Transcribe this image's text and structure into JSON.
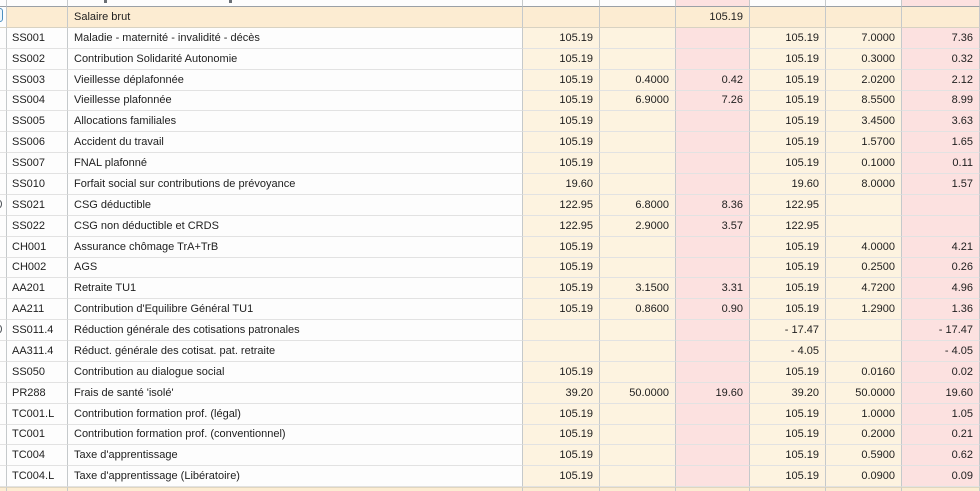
{
  "app": {
    "description_title": "Payroll contributions grid",
    "colors": {
      "highlight_row_bg": "#fcecd2",
      "numeric_col_bg": "#fdf3e0",
      "amount_col_bg": "#fce1e0",
      "plain_cell_bg": "#fdfdfd",
      "grid_vline": "#c5c9cb",
      "grid_hline": "#e2e2e2",
      "focus_chip_border": "#4d90c0"
    }
  },
  "table": {
    "columns": [
      {
        "key": "gutter",
        "label": ""
      },
      {
        "key": "code",
        "label": ""
      },
      {
        "key": "label",
        "label": ""
      },
      {
        "key": "b1",
        "label": ""
      },
      {
        "key": "r1",
        "label": ""
      },
      {
        "key": "a1",
        "label": ""
      },
      {
        "key": "b2",
        "label": ""
      },
      {
        "key": "r2",
        "label": ""
      },
      {
        "key": "a2",
        "label": ""
      }
    ],
    "rows": [
      {
        "code": "",
        "label": "Salaire brut",
        "b1": "",
        "r1": "",
        "a1": "105.19",
        "b2": "",
        "r2": "",
        "a2": "",
        "highlight": true,
        "focus_chip": true,
        "gutter_mark": false
      },
      {
        "code": "SS001",
        "label": "Maladie - maternité - invalidité - décès",
        "b1": "105.19",
        "r1": "",
        "a1": "",
        "b2": "105.19",
        "r2": "7.0000",
        "a2": "7.36",
        "highlight": false,
        "focus_chip": false,
        "gutter_mark": false
      },
      {
        "code": "SS002",
        "label": "Contribution Solidarité Autonomie",
        "b1": "105.19",
        "r1": "",
        "a1": "",
        "b2": "105.19",
        "r2": "0.3000",
        "a2": "0.32",
        "highlight": false,
        "focus_chip": false,
        "gutter_mark": false
      },
      {
        "code": "SS003",
        "label": "Vieillesse déplafonnée",
        "b1": "105.19",
        "r1": "0.4000",
        "a1": "0.42",
        "b2": "105.19",
        "r2": "2.0200",
        "a2": "2.12",
        "highlight": false,
        "focus_chip": false,
        "gutter_mark": false
      },
      {
        "code": "SS004",
        "label": "Vieillesse plafonnée",
        "b1": "105.19",
        "r1": "6.9000",
        "a1": "7.26",
        "b2": "105.19",
        "r2": "8.5500",
        "a2": "8.99",
        "highlight": false,
        "focus_chip": false,
        "gutter_mark": false
      },
      {
        "code": "SS005",
        "label": "Allocations familiales",
        "b1": "105.19",
        "r1": "",
        "a1": "",
        "b2": "105.19",
        "r2": "3.4500",
        "a2": "3.63",
        "highlight": false,
        "focus_chip": false,
        "gutter_mark": false
      },
      {
        "code": "SS006",
        "label": "Accident du travail",
        "b1": "105.19",
        "r1": "",
        "a1": "",
        "b2": "105.19",
        "r2": "1.5700",
        "a2": "1.65",
        "highlight": false,
        "focus_chip": false,
        "gutter_mark": false
      },
      {
        "code": "SS007",
        "label": "FNAL plafonné",
        "b1": "105.19",
        "r1": "",
        "a1": "",
        "b2": "105.19",
        "r2": "0.1000",
        "a2": "0.11",
        "highlight": false,
        "focus_chip": false,
        "gutter_mark": false
      },
      {
        "code": "SS010",
        "label": "Forfait social sur contributions de prévoyance",
        "b1": "19.60",
        "r1": "",
        "a1": "",
        "b2": "19.60",
        "r2": "8.0000",
        "a2": "1.57",
        "highlight": false,
        "focus_chip": false,
        "gutter_mark": false
      },
      {
        "code": "SS021",
        "label": "CSG déductible",
        "b1": "122.95",
        "r1": "6.8000",
        "a1": "8.36",
        "b2": "122.95",
        "r2": "",
        "a2": "",
        "highlight": false,
        "focus_chip": false,
        "gutter_mark": true
      },
      {
        "code": "SS022",
        "label": "CSG non déductible et CRDS",
        "b1": "122.95",
        "r1": "2.9000",
        "a1": "3.57",
        "b2": "122.95",
        "r2": "",
        "a2": "",
        "highlight": false,
        "focus_chip": false,
        "gutter_mark": false
      },
      {
        "code": "CH001",
        "label": "Assurance chômage TrA+TrB",
        "b1": "105.19",
        "r1": "",
        "a1": "",
        "b2": "105.19",
        "r2": "4.0000",
        "a2": "4.21",
        "highlight": false,
        "focus_chip": false,
        "gutter_mark": false
      },
      {
        "code": "CH002",
        "label": "AGS",
        "b1": "105.19",
        "r1": "",
        "a1": "",
        "b2": "105.19",
        "r2": "0.2500",
        "a2": "0.26",
        "highlight": false,
        "focus_chip": false,
        "gutter_mark": false
      },
      {
        "code": "AA201",
        "label": "Retraite TU1",
        "b1": "105.19",
        "r1": "3.1500",
        "a1": "3.31",
        "b2": "105.19",
        "r2": "4.7200",
        "a2": "4.96",
        "highlight": false,
        "focus_chip": false,
        "gutter_mark": false
      },
      {
        "code": "AA211",
        "label": "Contribution d'Equilibre Général TU1",
        "b1": "105.19",
        "r1": "0.8600",
        "a1": "0.90",
        "b2": "105.19",
        "r2": "1.2900",
        "a2": "1.36",
        "highlight": false,
        "focus_chip": false,
        "gutter_mark": false
      },
      {
        "code": "SS011.4",
        "label": "Réduction générale des cotisations patronales",
        "b1": "",
        "r1": "",
        "a1": "",
        "b2": "- 17.47",
        "r2": "",
        "a2": "- 17.47",
        "highlight": false,
        "focus_chip": false,
        "gutter_mark": true
      },
      {
        "code": "AA311.4",
        "label": "Réduct. générale des cotisat. pat. retraite",
        "b1": "",
        "r1": "",
        "a1": "",
        "b2": "- 4.05",
        "r2": "",
        "a2": "- 4.05",
        "highlight": false,
        "focus_chip": false,
        "gutter_mark": false
      },
      {
        "code": "SS050",
        "label": "Contribution au dialogue social",
        "b1": "105.19",
        "r1": "",
        "a1": "",
        "b2": "105.19",
        "r2": "0.0160",
        "a2": "0.02",
        "highlight": false,
        "focus_chip": false,
        "gutter_mark": false
      },
      {
        "code": "PR288",
        "label": "Frais de santé 'isolé'",
        "b1": "39.20",
        "r1": "50.0000",
        "a1": "19.60",
        "b2": "39.20",
        "r2": "50.0000",
        "a2": "19.60",
        "highlight": false,
        "focus_chip": false,
        "gutter_mark": false
      },
      {
        "code": "TC001.L",
        "label": "Contribution formation prof. (légal)",
        "b1": "105.19",
        "r1": "",
        "a1": "",
        "b2": "105.19",
        "r2": "1.0000",
        "a2": "1.05",
        "highlight": false,
        "focus_chip": false,
        "gutter_mark": false
      },
      {
        "code": "TC001",
        "label": "Contribution formation prof. (conventionnel)",
        "b1": "105.19",
        "r1": "",
        "a1": "",
        "b2": "105.19",
        "r2": "0.2000",
        "a2": "0.21",
        "highlight": false,
        "focus_chip": false,
        "gutter_mark": false
      },
      {
        "code": "TC004",
        "label": "Taxe d'apprentissage",
        "b1": "105.19",
        "r1": "",
        "a1": "",
        "b2": "105.19",
        "r2": "0.5900",
        "a2": "0.62",
        "highlight": false,
        "focus_chip": false,
        "gutter_mark": false
      },
      {
        "code": "TC004.L",
        "label": "Taxe d'apprentissage (Libératoire)",
        "b1": "105.19",
        "r1": "",
        "a1": "",
        "b2": "105.19",
        "r2": "0.0900",
        "a2": "0.09",
        "highlight": false,
        "focus_chip": false,
        "gutter_mark": false
      }
    ]
  }
}
